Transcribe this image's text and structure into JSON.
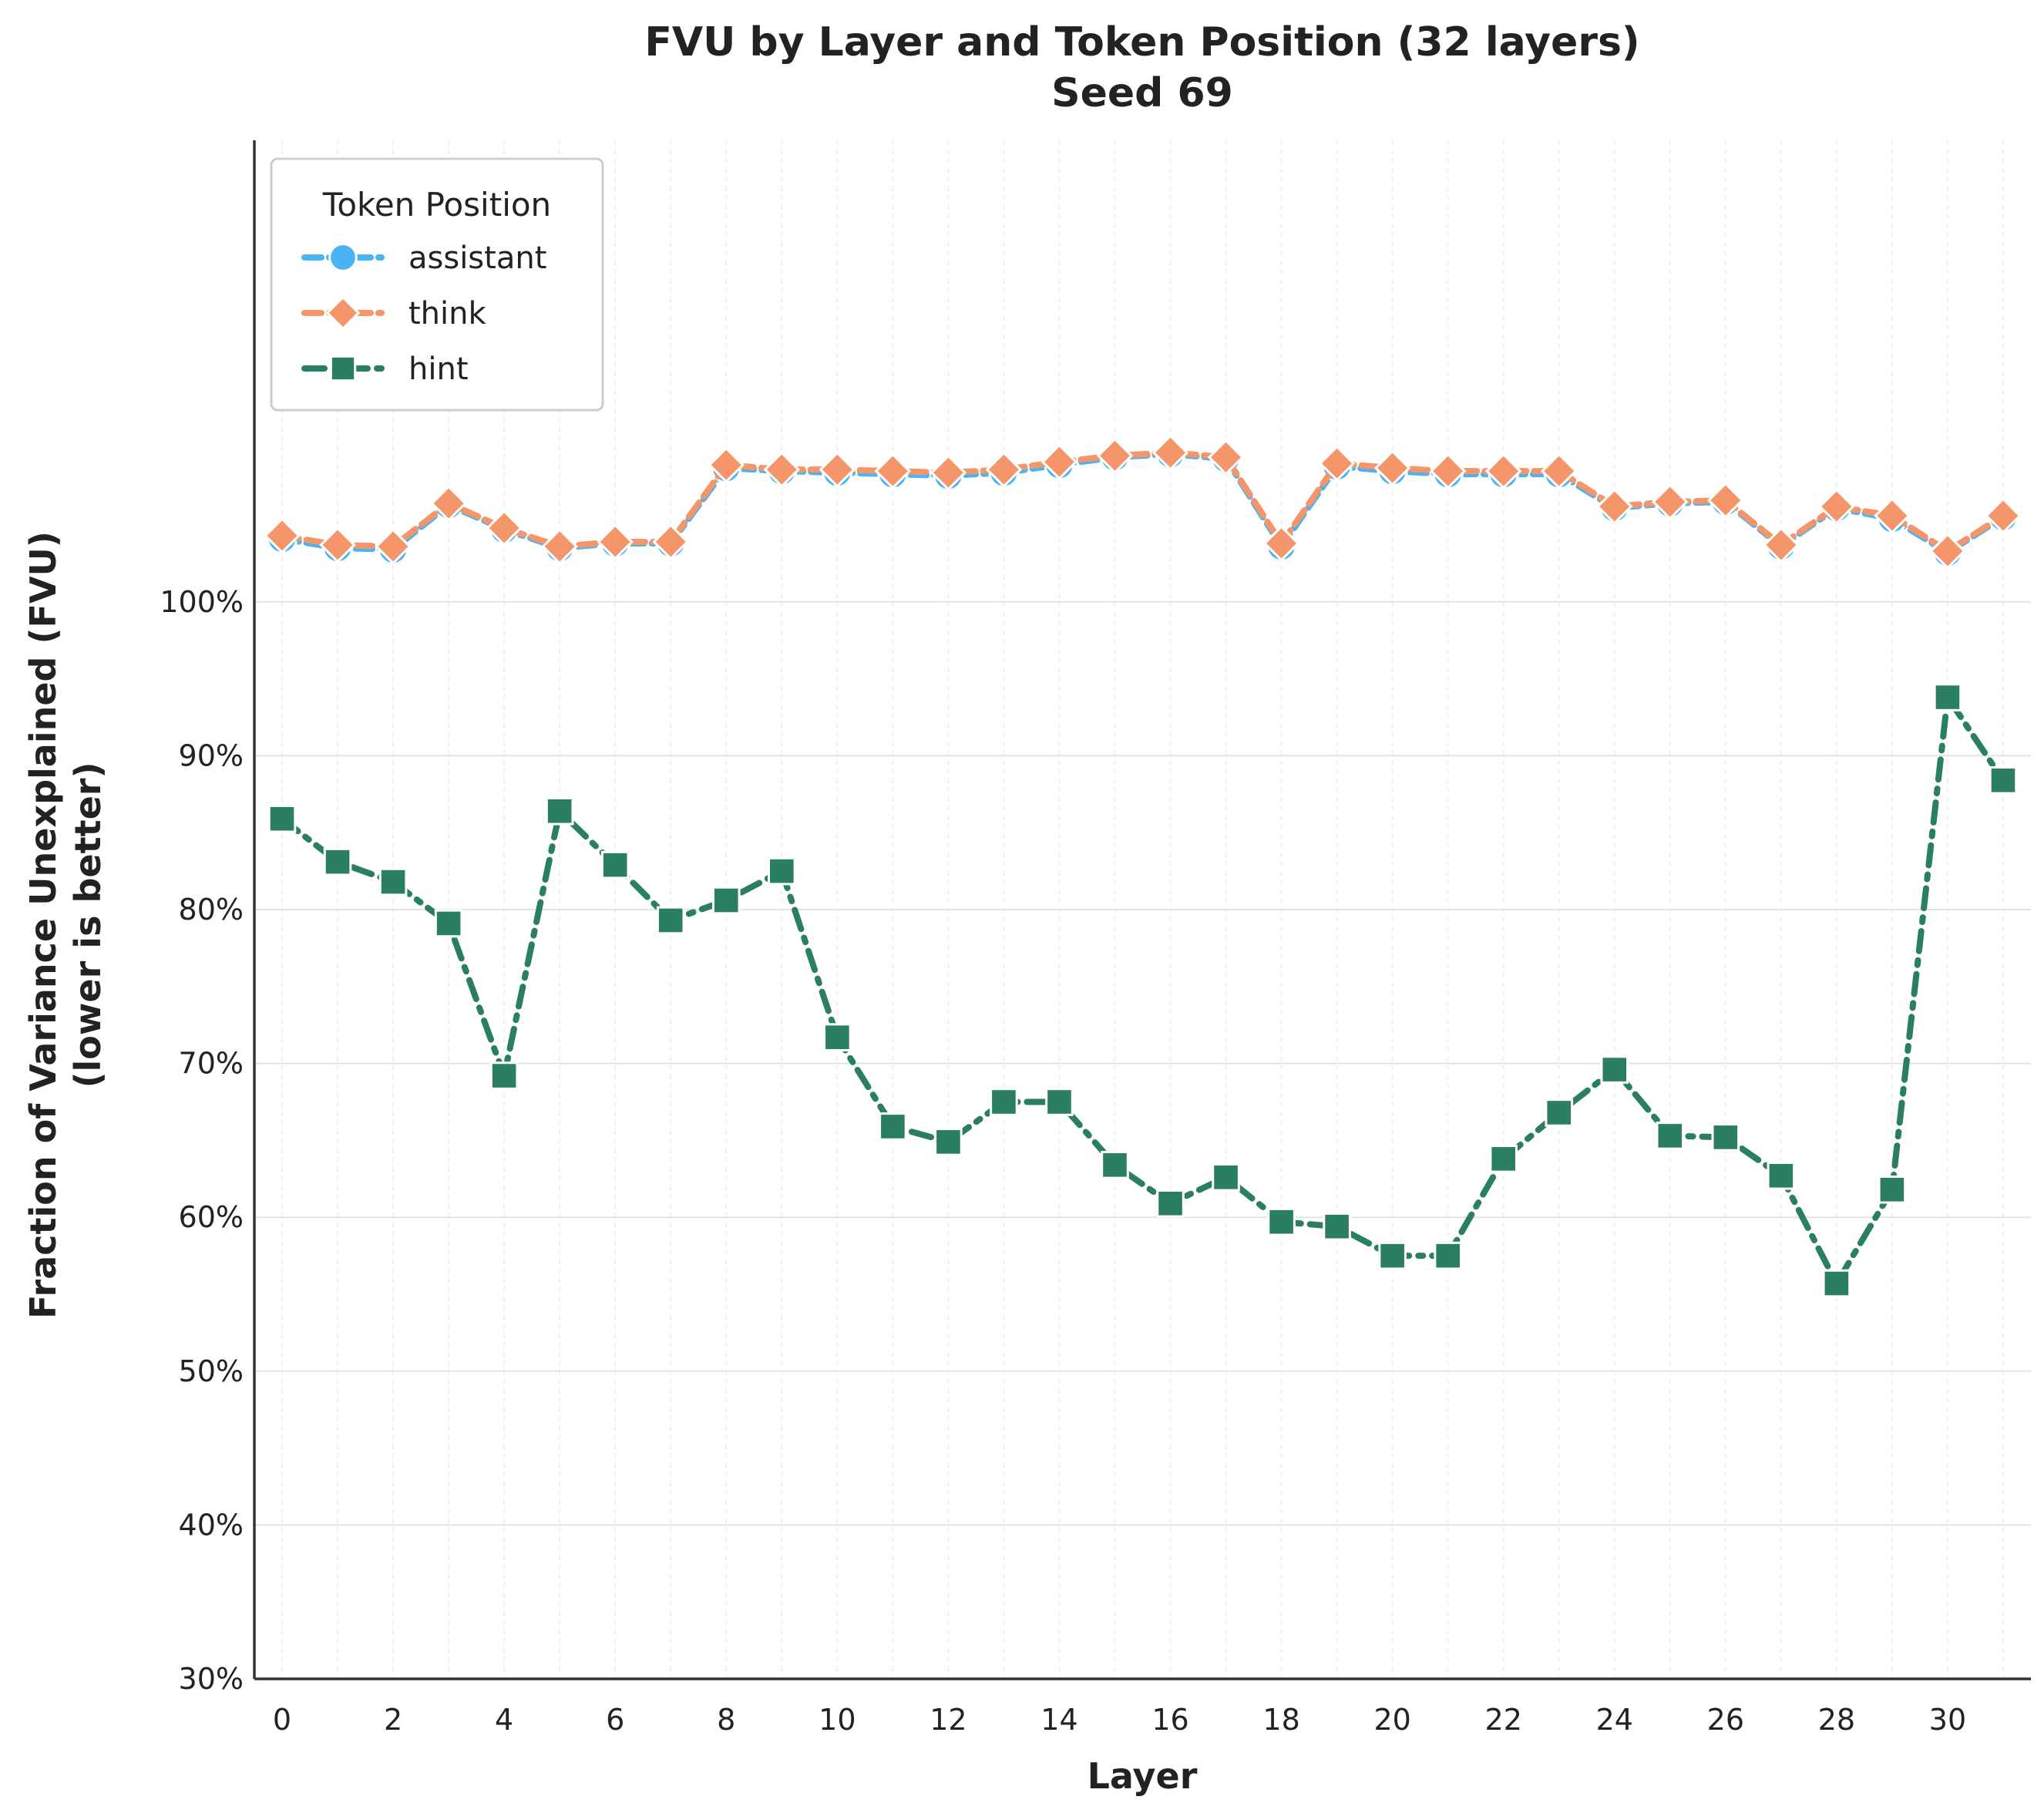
{
  "chart_data": {
    "type": "line",
    "title": "FVU by Layer and Token Position (32 layers)",
    "subtitle": "Seed 69",
    "xlabel": "Layer",
    "ylabel": "Fraction of Variance Unexplained (FVU)",
    "ylabel_sub": "(lower is better)",
    "xlim": [
      -0.5,
      31.5
    ],
    "ylim": [
      30,
      130
    ],
    "x_ticks": [
      0,
      2,
      4,
      6,
      8,
      10,
      12,
      14,
      16,
      18,
      20,
      22,
      24,
      26,
      28,
      30
    ],
    "x_tick_labels": [
      "0",
      "2",
      "4",
      "6",
      "8",
      "10",
      "12",
      "14",
      "16",
      "18",
      "20",
      "22",
      "24",
      "26",
      "28",
      "30"
    ],
    "y_ticks": [
      30,
      40,
      50,
      60,
      70,
      80,
      90,
      100
    ],
    "y_tick_labels": [
      "30%",
      "40%",
      "50%",
      "60%",
      "70%",
      "80%",
      "90%",
      "100%"
    ],
    "grid": "horizontal solid, vertical dotted",
    "legend": {
      "title": "Token Position",
      "placement": "top-left"
    },
    "x": [
      0,
      1,
      2,
      3,
      4,
      5,
      6,
      7,
      8,
      9,
      10,
      11,
      12,
      13,
      14,
      15,
      16,
      17,
      18,
      19,
      20,
      21,
      22,
      23,
      24,
      25,
      26,
      27,
      28,
      29,
      30,
      31
    ],
    "series": [
      {
        "name": "assistant",
        "color": "#4ab3f4",
        "marker": "circle",
        "line_style": "dashed",
        "values": [
          104.1,
          103.5,
          103.4,
          106.3,
          104.7,
          103.5,
          103.8,
          103.8,
          108.7,
          108.5,
          108.4,
          108.3,
          108.2,
          108.4,
          108.9,
          109.4,
          109.6,
          109.3,
          103.6,
          108.8,
          108.5,
          108.3,
          108.3,
          108.3,
          106.1,
          106.4,
          106.5,
          103.6,
          106.1,
          105.4,
          103.2,
          105.5
        ]
      },
      {
        "name": "think",
        "color": "#f4956a",
        "marker": "diamond",
        "line_style": "dashed",
        "values": [
          104.3,
          103.7,
          103.6,
          106.4,
          104.8,
          103.6,
          103.9,
          103.9,
          108.9,
          108.6,
          108.6,
          108.5,
          108.4,
          108.6,
          109.1,
          109.5,
          109.7,
          109.4,
          103.8,
          109.0,
          108.7,
          108.5,
          108.5,
          108.5,
          106.2,
          106.5,
          106.6,
          103.7,
          106.2,
          105.6,
          103.3,
          105.6
        ]
      },
      {
        "name": "hint",
        "color": "#2a7f62",
        "marker": "square",
        "line_style": "dashdot",
        "values": [
          85.9,
          83.1,
          81.8,
          79.1,
          69.2,
          86.4,
          82.9,
          79.3,
          80.6,
          82.5,
          71.7,
          65.9,
          64.9,
          67.5,
          67.5,
          63.4,
          60.9,
          62.6,
          59.7,
          59.4,
          57.5,
          57.5,
          63.8,
          66.8,
          69.6,
          65.3,
          65.2,
          62.7,
          55.7,
          61.8,
          93.8,
          88.4
        ]
      }
    ]
  }
}
